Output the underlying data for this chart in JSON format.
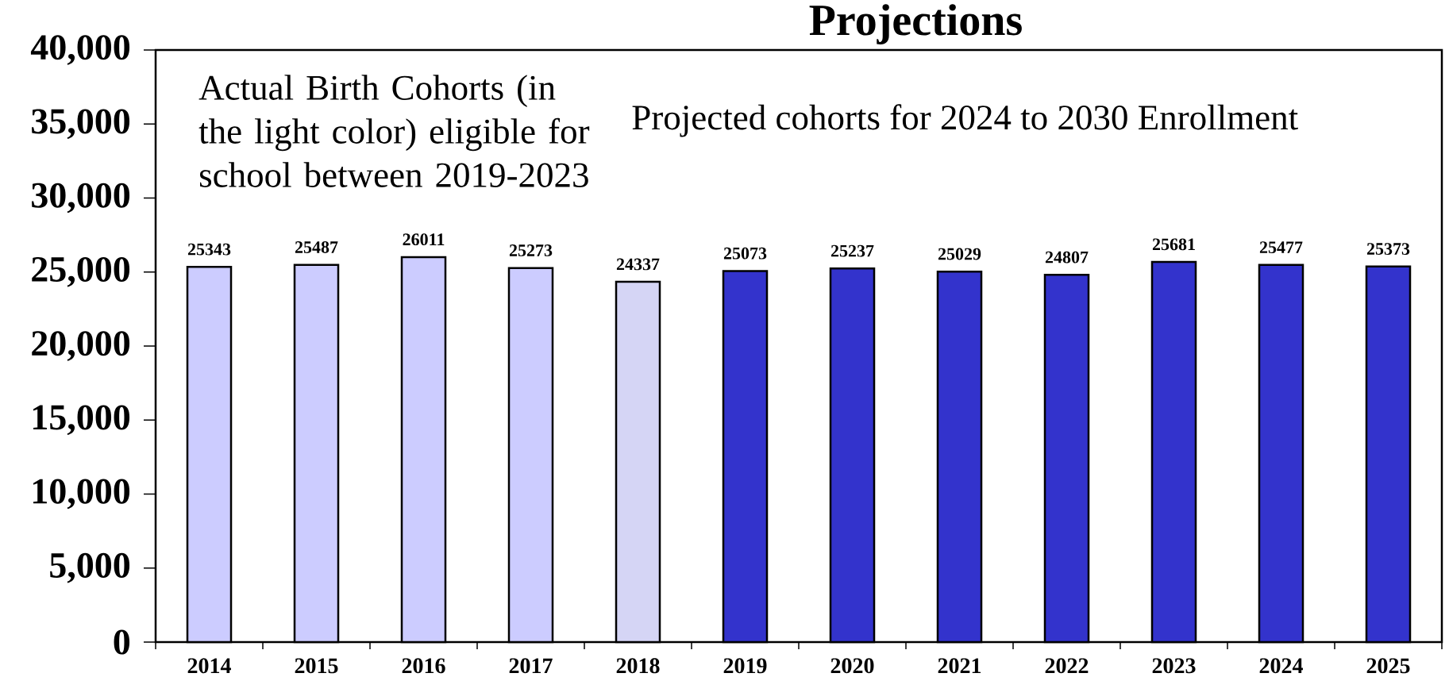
{
  "chart_data": {
    "type": "bar",
    "title": "Projections",
    "categories": [
      "2014",
      "2015",
      "2016",
      "2017",
      "2018",
      "2019",
      "2020",
      "2021",
      "2022",
      "2023",
      "2024",
      "2025"
    ],
    "values": [
      25343,
      25487,
      26011,
      25273,
      24337,
      25073,
      25237,
      25029,
      24807,
      25681,
      25477,
      25373
    ],
    "colors": [
      "#ccccff",
      "#ccccff",
      "#ccccff",
      "#ccccff",
      "#d5d5f5",
      "#3333cc",
      "#3333cc",
      "#3333cc",
      "#3333cc",
      "#3333cc",
      "#3333cc",
      "#3333cc"
    ],
    "ylim": [
      0,
      40000
    ],
    "yticks": [
      0,
      {
        "value": 5000,
        "label": "5,000"
      },
      {
        "value": 10000,
        "label": "10,000"
      },
      {
        "value": 15000,
        "label": "15,000"
      },
      {
        "value": 20000,
        "label": "20,000"
      },
      {
        "value": 25000,
        "label": "25,000"
      },
      {
        "value": 30000,
        "label": "30,000"
      },
      {
        "value": 35000,
        "label": "35,000"
      },
      {
        "value": 40000,
        "label": "40,000"
      }
    ],
    "data_labels": true,
    "annotations": [
      "Actual Birth Cohorts (in the light color) eligible for school between 2019-2023",
      "Projected cohorts for 2024 to 2030 Enrollment"
    ]
  }
}
